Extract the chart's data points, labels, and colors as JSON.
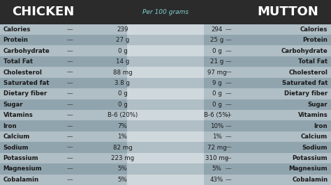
{
  "title_left": "CHICKEN",
  "title_right": "MUTTON",
  "subtitle": "Per 100 grams",
  "nutrients": [
    "Calories",
    "Protein",
    "Carbohydrate",
    "Total Fat",
    "Cholesterol",
    "Saturated fat",
    "Dietary fiber",
    "Sugar",
    "Vitamins",
    "Iron",
    "Calcium",
    "Sodium",
    "Potassium",
    "Magnesium",
    "Cobalamin"
  ],
  "chicken_values": [
    "239",
    "27 g",
    "0 g",
    "14 g",
    "88 mg",
    "3.8 g",
    "0 g",
    "0 g",
    "B-6 (20%)",
    "7%",
    "1%",
    "82 mg",
    "223 mg",
    "5%",
    "5%"
  ],
  "mutton_values": [
    "294",
    "25 g",
    "0 g",
    "21 g",
    "97 mg",
    "9 g",
    "0 g",
    "0 g",
    "B-6 (5%)",
    "10%",
    "1%",
    "72 mg",
    "310 mg",
    "5%",
    "43%"
  ],
  "bg_color": "#2b2b2b",
  "header_bg": "#2b2b2b",
  "row_light": "#b0bec5",
  "row_dark": "#90a4ae",
  "center_light": "#cfd8dc",
  "center_dark": "#b0bec5",
  "title_color": "#ffffff",
  "subtitle_color": "#7ecfcf",
  "value_color": "#1a1a1a",
  "label_color": "#1a1a1a",
  "dash_color": "#555555"
}
